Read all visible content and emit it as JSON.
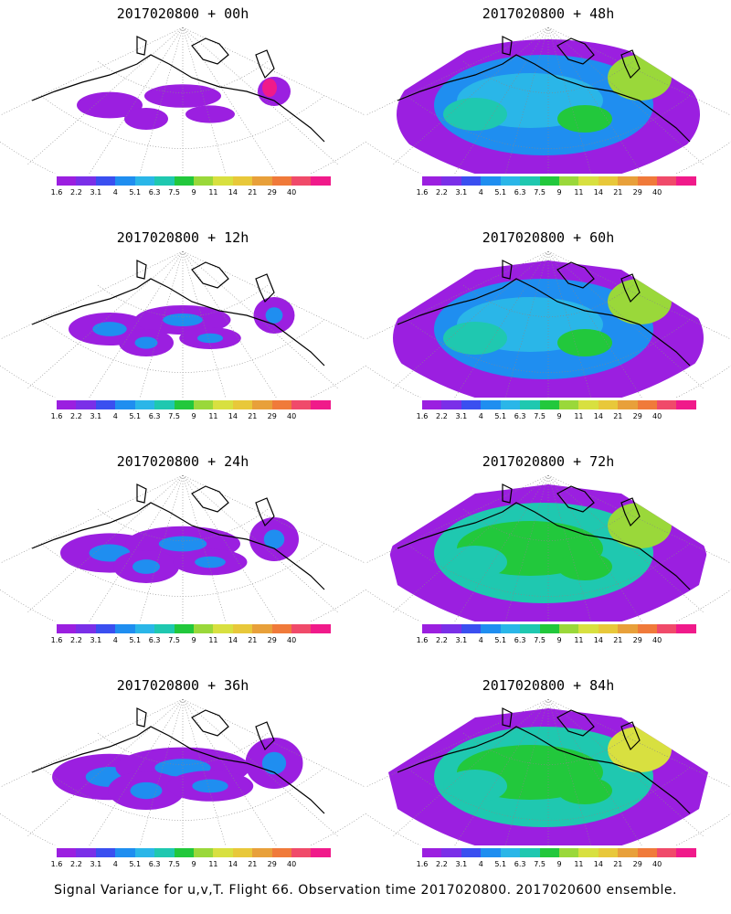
{
  "panels": [
    {
      "title": "2017020800  +  00h",
      "intensity": 0
    },
    {
      "title": "2017020800  +  48h",
      "intensity": 4
    },
    {
      "title": "2017020800  +  12h",
      "intensity": 1
    },
    {
      "title": "2017020800  +  60h",
      "intensity": 5
    },
    {
      "title": "2017020800  +  24h",
      "intensity": 2
    },
    {
      "title": "2017020800  +  72h",
      "intensity": 6
    },
    {
      "title": "2017020800  +  36h",
      "intensity": 3
    },
    {
      "title": "2017020800  +  84h",
      "intensity": 7
    }
  ],
  "colorbar": {
    "colors": [
      "#9b1fe0",
      "#7a2fe8",
      "#3a4ff0",
      "#1f8ef0",
      "#2ab6e8",
      "#1fc8b0",
      "#22c83c",
      "#9ad83a",
      "#d8e040",
      "#e8c83a",
      "#e8a03a",
      "#f07a3a",
      "#f04a6a",
      "#f01a8a"
    ],
    "labels": [
      "1.6",
      "2.2",
      "3.1",
      "4",
      "5.1",
      "6.3",
      "7.5",
      "9",
      "11",
      "14",
      "21",
      "29",
      "40"
    ]
  },
  "footer": "Signal Variance for u,v,T. Flight 66. Observation time 2017020800. 2017020600 ensemble."
}
